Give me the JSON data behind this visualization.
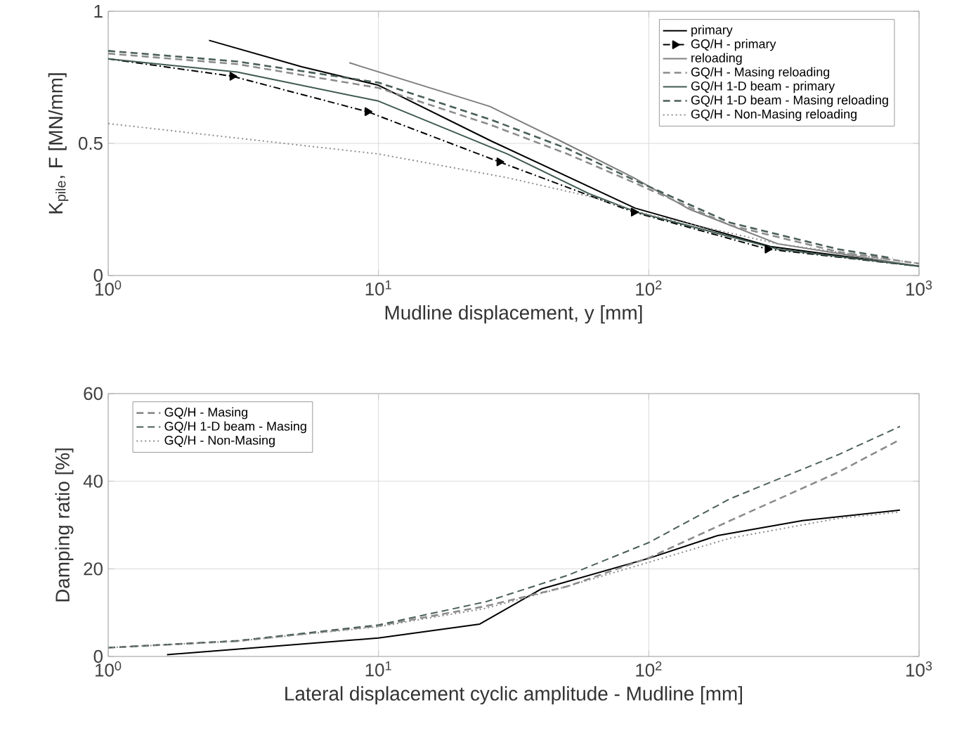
{
  "chart_data": [
    {
      "type": "line",
      "xlabel": "Mudline displacement, y [mm]",
      "ylabel": "K$_{pile}$, F [MN/mm]",
      "log": "x",
      "grid": true,
      "legend": "top right",
      "xlim": [
        1,
        1000
      ],
      "xticks": [
        {
          "value": 1,
          "label": "10$^{0}$"
        },
        {
          "value": 10,
          "label": "10$^{1}$"
        },
        {
          "value": 100,
          "label": "10$^{2}$"
        },
        {
          "value": 1000,
          "label": "10$^{3}$"
        }
      ],
      "ylim": [
        0,
        1
      ],
      "yticks": [
        0,
        0.5,
        1
      ],
      "series": [
        {
          "name": "primary",
          "color": "#000000",
          "line_style": "solid",
          "x": [
            2.36,
            5.2,
            10,
            26,
            89,
            282,
            1000
          ],
          "values": [
            0.89,
            0.79,
            0.72,
            0.51,
            0.255,
            0.11,
            0.035
          ]
        },
        {
          "name": "GQ/H - primary",
          "color": "#000000",
          "line_style": "dashdot",
          "marker": "triangle",
          "x": [
            1,
            2.88,
            9.1,
            28,
            88,
            275,
            1000
          ],
          "values": [
            0.82,
            0.754,
            0.62,
            0.43,
            0.24,
            0.1,
            0.035
          ]
        },
        {
          "name": "reloading",
          "color": "#7f7f7f",
          "line_style": "solid",
          "x": [
            7.8,
            25.8,
            47,
            88,
            142,
            300,
            1000
          ],
          "values": [
            0.805,
            0.64,
            0.51,
            0.37,
            0.25,
            0.12,
            0.035
          ]
        },
        {
          "name": "GQ/H - Masing reloading",
          "color": "#8c8c8c",
          "line_style": "dashed",
          "x": [
            1,
            3,
            10,
            26,
            50,
            89,
            200,
            500,
            1000
          ],
          "values": [
            0.84,
            0.8,
            0.71,
            0.57,
            0.46,
            0.35,
            0.19,
            0.09,
            0.045
          ]
        },
        {
          "name": "GQ/H 1-D beam - primary",
          "color": "#3f5a52",
          "line_style": "solid",
          "x": [
            1,
            3,
            10,
            30,
            60,
            90,
            300,
            1000
          ],
          "values": [
            0.82,
            0.77,
            0.66,
            0.46,
            0.31,
            0.24,
            0.1,
            0.035
          ]
        },
        {
          "name": "GQ/H 1-D beam - Masing reloading",
          "color": "#4a5f58",
          "line_style": "dashed",
          "x": [
            1,
            3,
            10,
            26,
            50,
            89,
            200,
            500,
            800
          ],
          "values": [
            0.85,
            0.81,
            0.73,
            0.59,
            0.48,
            0.36,
            0.2,
            0.1,
            0.065
          ]
        },
        {
          "name": "GQ/H - Non-Masing reloading",
          "color": "#8c8c8c",
          "line_style": "dotted",
          "x": [
            1,
            3,
            10,
            30,
            60,
            100,
            300,
            1000
          ],
          "values": [
            0.575,
            0.52,
            0.46,
            0.37,
            0.3,
            0.23,
            0.12,
            0.045
          ]
        }
      ]
    },
    {
      "type": "line",
      "xlabel": "Lateral displacement cyclic amplitude - Mudline [mm]",
      "ylabel": "Damping ratio [%]",
      "log": "x",
      "grid": true,
      "legend": "top left",
      "xlim": [
        1,
        1000
      ],
      "xticks": [
        {
          "value": 1,
          "label": "10$^{0}$"
        },
        {
          "value": 10,
          "label": "10$^{1}$"
        },
        {
          "value": 100,
          "label": "10$^{2}$"
        },
        {
          "value": 1000,
          "label": "10$^{3}$"
        }
      ],
      "ylim": [
        0,
        60
      ],
      "yticks": [
        0,
        20,
        40,
        60
      ],
      "series": [
        {
          "color": "#000000",
          "line_style": "solid",
          "x": [
            1.65,
            10,
            23.7,
            40,
            100,
            180,
            370,
            850
          ],
          "values": [
            0.4,
            4.2,
            7.4,
            15.4,
            22.4,
            27.6,
            31,
            33.4
          ]
        },
        {
          "name": "GQ/H - Masing",
          "color": "#8c8c8c",
          "line_style": "dashed",
          "x": [
            1,
            3,
            10,
            25,
            50,
            100,
            200,
            500,
            850
          ],
          "values": [
            2,
            3.5,
            7,
            11.5,
            16,
            22.5,
            31,
            42,
            49.5
          ]
        },
        {
          "name": "GQ/H 1-D beam - Masing",
          "color": "#4a5f58",
          "line_style": "dashed",
          "x": [
            1,
            3,
            10,
            25,
            50,
            100,
            200,
            500,
            850
          ],
          "values": [
            2,
            3.6,
            7.2,
            12.5,
            18.5,
            26,
            36,
            46,
            52.5
          ]
        },
        {
          "name": "GQ/H - Non-Masing",
          "color": "#8c8c8c",
          "line_style": "dotted",
          "x": [
            1,
            3,
            10,
            25,
            50,
            100,
            200,
            500,
            850
          ],
          "values": [
            2,
            3.5,
            6.8,
            11,
            16,
            21.5,
            27,
            31.5,
            33
          ]
        }
      ]
    }
  ]
}
